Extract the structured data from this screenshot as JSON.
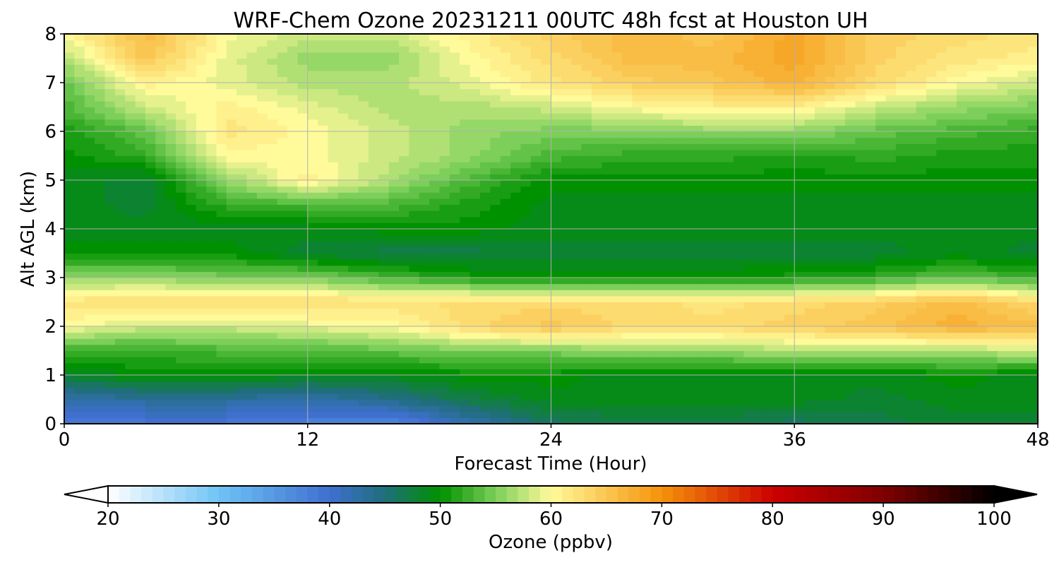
{
  "chart_data": {
    "type": "heatmap",
    "title": "WRF-Chem Ozone  20231211 00UTC 48h fcst at Houston UH",
    "xlabel": "Forecast Time (Hour)",
    "ylabel": "Alt AGL (km)",
    "xlim": [
      0,
      48
    ],
    "ylim": [
      0,
      8
    ],
    "xticks": [
      0,
      12,
      24,
      36,
      48
    ],
    "yticks": [
      0,
      1,
      2,
      3,
      4,
      5,
      6,
      7,
      8
    ],
    "grid": true,
    "x": [
      0,
      4,
      8,
      12,
      16,
      20,
      24,
      28,
      32,
      36,
      40,
      44,
      48
    ],
    "y": [
      0,
      0.5,
      1,
      1.5,
      2,
      2.5,
      3,
      3.5,
      4,
      4.5,
      5,
      5.5,
      6,
      6.5,
      7,
      7.5,
      8
    ],
    "z": [
      [
        39,
        39,
        39,
        38,
        37,
        42,
        46,
        47,
        47,
        46,
        47,
        48,
        48
      ],
      [
        42,
        43,
        43,
        42,
        44,
        47,
        49,
        49,
        49,
        49,
        48,
        49,
        49
      ],
      [
        48,
        50,
        50,
        49,
        49,
        50,
        50,
        49,
        49,
        49,
        49,
        50,
        49
      ],
      [
        52,
        52,
        53,
        53,
        54,
        55,
        55,
        56,
        56,
        57,
        57,
        57,
        58
      ],
      [
        60,
        58,
        58,
        59,
        60,
        63,
        65,
        63,
        63,
        64,
        65,
        67,
        66
      ],
      [
        62,
        63,
        63,
        63,
        62,
        63,
        63,
        63,
        62,
        63,
        64,
        66,
        63
      ],
      [
        56,
        56,
        55,
        55,
        53,
        51,
        50,
        50,
        50,
        51,
        52,
        54,
        52
      ],
      [
        50,
        50,
        50,
        48,
        47,
        47,
        48,
        48,
        48,
        48,
        48,
        49,
        48
      ],
      [
        49,
        49,
        49,
        49,
        50,
        50,
        49,
        49,
        49,
        49,
        49,
        49,
        49
      ],
      [
        49,
        48,
        52,
        53,
        53,
        51,
        49,
        49,
        49,
        49,
        49,
        49,
        49
      ],
      [
        49,
        48,
        56,
        61,
        57,
        53,
        50,
        50,
        50,
        50,
        50,
        50,
        50
      ],
      [
        50,
        52,
        60,
        60,
        58,
        56,
        53,
        52,
        52,
        51,
        52,
        51,
        51
      ],
      [
        51,
        54,
        62,
        60,
        58,
        56,
        55,
        55,
        56,
        56,
        54,
        53,
        52
      ],
      [
        53,
        58,
        61,
        59,
        57,
        57,
        58,
        60,
        61,
        61,
        58,
        56,
        55
      ],
      [
        54,
        61,
        59,
        57,
        57,
        59,
        62,
        64,
        65,
        67,
        63,
        60,
        58
      ],
      [
        57,
        65,
        59,
        56,
        56,
        60,
        63,
        66,
        66,
        68,
        64,
        62,
        61
      ],
      [
        60,
        66,
        60,
        58,
        58,
        61,
        64,
        66,
        65,
        68,
        64,
        63,
        62
      ]
    ],
    "colorbar": {
      "label": "Ozone  (ppbv)",
      "vmin": 20,
      "vmax": 100,
      "ticks": [
        20,
        30,
        40,
        50,
        60,
        70,
        80,
        90,
        100
      ],
      "extend": "both",
      "stops": [
        {
          "v": 20,
          "color": "#ffffff"
        },
        {
          "v": 30,
          "color": "#6fc3f5"
        },
        {
          "v": 40,
          "color": "#3f6fcf"
        },
        {
          "v": 45,
          "color": "#1f6e7a"
        },
        {
          "v": 50,
          "color": "#009100"
        },
        {
          "v": 55,
          "color": "#7ccf5a"
        },
        {
          "v": 60,
          "color": "#fffa9a"
        },
        {
          "v": 70,
          "color": "#f5920a"
        },
        {
          "v": 80,
          "color": "#cc0000"
        },
        {
          "v": 90,
          "color": "#800000"
        },
        {
          "v": 100,
          "color": "#000000"
        }
      ],
      "over_color": "#000000",
      "under_color": "#ffffff"
    }
  }
}
